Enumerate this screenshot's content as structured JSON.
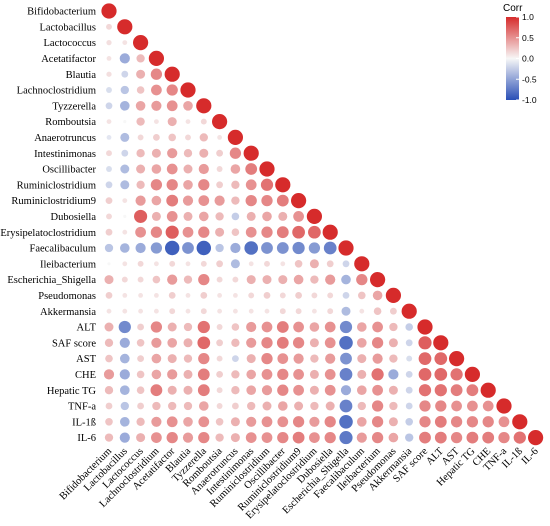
{
  "chart_data": {
    "type": "heatmap",
    "style": "lower-triangle correlation matrix, circles sized and colored by correlation",
    "variables": [
      "Bifidobacterium",
      "Lactobacillus",
      "Lactococcus",
      "Acetatifactor",
      "Blautia",
      "Lachnoclostridium",
      "Tyzzerella",
      "Romboutsia",
      "Anaerotruncus",
      "Intestinimonas",
      "Oscillibacter",
      "Ruminiclostridium",
      "Ruminiclostridium9",
      "Dubosiella",
      "Erysipelatoclostridium",
      "Faecalibaculum",
      "Ileibacterium",
      "Escherichia_Shigella",
      "Pseudomonas",
      "Akkermansia",
      "ALT",
      "SAF score",
      "AST",
      "CHE",
      "Hepatic TG",
      "TNF-a",
      "IL-1ß",
      "IL-6"
    ],
    "col_labels": [
      "Bifidobacterium",
      "Lactobacillus",
      "Lactococcus",
      "Lachnoclostridium",
      "Acetatifactor",
      "Blautia",
      "Tyzzerella",
      "Romboutsia",
      "Anaerotruncus",
      "Intestinimonas",
      "Ruminiclostridium",
      "Oscillibacter",
      "Ruminiclostridium9",
      "Erysipelatoclostridium",
      "Dubosiella",
      "Escherichia_Shigella",
      "Faecalibaculum",
      "Ileibacterium",
      "Pseudomonas",
      "Akkermansia",
      "SAF score",
      "ALT",
      "AST",
      "Hepatic TG",
      "CHE",
      "TNF-a",
      "IL-1ß",
      "IL-6"
    ],
    "legend": {
      "title": "Corr",
      "ticks": [
        "1.0",
        "0.5",
        "0.0",
        "-0.5",
        "-1.0"
      ],
      "range": [
        -1.0,
        1.0
      ],
      "colors": {
        "negative": "#2a4fb6",
        "zero": "#f7f7f7",
        "positive": "#d62b2b"
      },
      "placement": "top-right"
    },
    "matrix_lower": [
      [
        1.0
      ],
      [
        0.15,
        1.0
      ],
      [
        0.12,
        0.1,
        1.0
      ],
      [
        0.1,
        -0.45,
        0.3,
        1.0
      ],
      [
        0.12,
        -0.2,
        0.35,
        0.55,
        1.0
      ],
      [
        -0.15,
        -0.3,
        0.25,
        0.5,
        0.55,
        1.0
      ],
      [
        -0.2,
        -0.4,
        0.4,
        0.45,
        0.5,
        0.4,
        1.0
      ],
      [
        0.1,
        0.0,
        0.3,
        0.1,
        0.35,
        0.1,
        0.15,
        1.0
      ],
      [
        -0.1,
        -0.35,
        0.15,
        0.2,
        0.25,
        0.15,
        0.3,
        0.1,
        1.0
      ],
      [
        0.15,
        -0.2,
        0.3,
        0.35,
        0.45,
        0.3,
        0.35,
        0.2,
        0.55,
        1.0
      ],
      [
        -0.15,
        -0.35,
        0.35,
        0.4,
        0.5,
        0.35,
        0.45,
        0.15,
        0.4,
        0.6,
        1.0
      ],
      [
        -0.2,
        -0.35,
        0.3,
        0.55,
        0.55,
        0.4,
        0.55,
        0.2,
        0.3,
        0.5,
        0.65,
        1.0
      ],
      [
        0.2,
        0.1,
        0.45,
        0.4,
        0.6,
        0.45,
        0.5,
        0.45,
        0.3,
        0.55,
        0.55,
        0.6,
        1.0
      ],
      [
        0.15,
        0.0,
        0.75,
        0.35,
        0.5,
        0.35,
        0.4,
        0.3,
        -0.25,
        0.35,
        0.4,
        0.35,
        0.5,
        1.0
      ],
      [
        0.2,
        0.1,
        0.5,
        0.55,
        0.75,
        0.5,
        0.55,
        0.35,
        0.25,
        0.5,
        0.55,
        0.6,
        0.7,
        0.7,
        1.0
      ],
      [
        -0.3,
        -0.4,
        -0.45,
        -0.55,
        -0.9,
        -0.6,
        -0.9,
        -0.3,
        -0.45,
        -0.8,
        -0.6,
        -0.6,
        -0.65,
        -0.55,
        -0.7,
        1.0
      ],
      [
        0.0,
        0.1,
        0.15,
        0.1,
        0.15,
        0.1,
        0.15,
        0.2,
        -0.35,
        0.1,
        0.15,
        0.1,
        0.25,
        0.35,
        0.2,
        -0.2,
        1.0
      ],
      [
        0.35,
        0.15,
        0.15,
        0.25,
        0.45,
        0.3,
        0.55,
        0.15,
        0.15,
        0.35,
        0.35,
        0.35,
        0.4,
        0.3,
        0.45,
        -0.4,
        0.55,
        1.0
      ],
      [
        0.2,
        0.1,
        0.1,
        0.1,
        0.2,
        0.1,
        0.2,
        0.1,
        0.1,
        0.15,
        0.2,
        0.15,
        0.2,
        0.15,
        0.15,
        -0.2,
        0.25,
        0.4,
        1.0
      ],
      [
        0.1,
        0.1,
        0.1,
        0.1,
        0.15,
        0.1,
        0.15,
        0.1,
        0.1,
        0.1,
        0.1,
        0.15,
        0.15,
        0.1,
        0.15,
        -0.35,
        0.1,
        0.25,
        0.2,
        1.0
      ],
      [
        0.35,
        -0.65,
        0.2,
        0.55,
        0.35,
        0.3,
        0.65,
        0.15,
        0.25,
        0.45,
        0.5,
        0.6,
        0.5,
        0.4,
        0.5,
        -0.65,
        0.4,
        0.5,
        0.3,
        -0.25,
        1.0
      ],
      [
        0.3,
        -0.45,
        0.25,
        0.45,
        0.4,
        0.35,
        0.7,
        0.2,
        0.3,
        0.45,
        0.55,
        0.6,
        0.55,
        0.35,
        0.5,
        -0.8,
        0.4,
        0.55,
        0.35,
        -0.2,
        0.75,
        1.0
      ],
      [
        0.25,
        -0.4,
        0.2,
        0.4,
        0.35,
        0.3,
        0.55,
        0.15,
        -0.2,
        0.35,
        0.55,
        0.5,
        0.45,
        0.3,
        0.45,
        -0.6,
        0.35,
        0.45,
        0.3,
        -0.15,
        0.7,
        0.7,
        1.0
      ],
      [
        0.45,
        -0.45,
        0.25,
        0.4,
        0.45,
        0.35,
        0.6,
        0.2,
        0.3,
        0.4,
        0.5,
        0.55,
        0.5,
        0.35,
        0.5,
        -0.7,
        0.35,
        0.65,
        -0.45,
        -0.2,
        0.7,
        0.7,
        0.65,
        1.0
      ],
      [
        0.3,
        -0.4,
        0.25,
        0.6,
        0.35,
        0.35,
        0.6,
        0.15,
        0.3,
        0.4,
        0.45,
        0.55,
        0.5,
        0.35,
        0.5,
        -0.45,
        0.4,
        0.5,
        0.35,
        -0.2,
        0.65,
        0.65,
        0.6,
        0.6,
        1.0
      ],
      [
        0.2,
        -0.3,
        0.2,
        0.3,
        0.3,
        0.3,
        0.4,
        0.15,
        0.2,
        0.3,
        0.35,
        0.4,
        0.35,
        0.3,
        0.35,
        -0.7,
        0.3,
        0.55,
        0.3,
        -0.2,
        0.55,
        0.55,
        0.5,
        0.5,
        0.5,
        1.0
      ],
      [
        0.25,
        -0.4,
        0.3,
        0.45,
        0.5,
        0.4,
        0.5,
        0.25,
        0.35,
        0.45,
        0.5,
        0.5,
        0.55,
        0.45,
        0.55,
        -0.8,
        0.4,
        0.55,
        0.35,
        -0.25,
        0.55,
        0.6,
        0.55,
        0.55,
        0.55,
        0.5,
        1.0
      ],
      [
        0.3,
        -0.45,
        0.35,
        0.5,
        0.55,
        0.45,
        0.55,
        0.3,
        0.35,
        0.5,
        0.5,
        0.55,
        0.6,
        0.5,
        0.55,
        -0.75,
        0.45,
        0.55,
        0.4,
        -0.3,
        0.6,
        0.6,
        0.55,
        0.6,
        0.6,
        0.55,
        0.65,
        1.0
      ]
    ]
  }
}
